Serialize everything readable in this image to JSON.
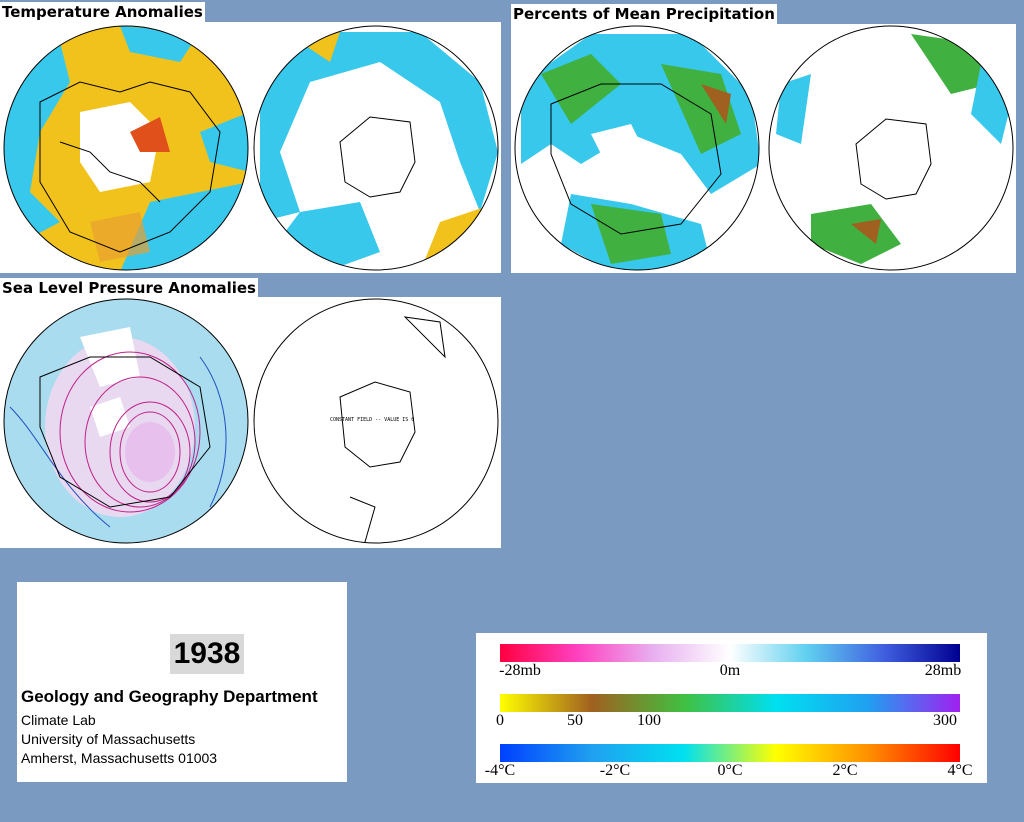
{
  "titles": {
    "temperature": "Temperature Anomalies",
    "precipitation": "Percents of Mean Precipitation",
    "pressure": "Sea Level Pressure Anomalies"
  },
  "map_note": "CONSTANT FIELD -- VALUE IS 0",
  "info": {
    "year": "1938",
    "department": "Geology and Geography Department",
    "lines": [
      "Climate Lab",
      "University of Massachusetts",
      "Amherst, Massachusetts 01003"
    ]
  },
  "legends": {
    "pressure": {
      "colors": [
        "#ff0040",
        "#ff40c0",
        "#e8b0f0",
        "#ffffff",
        "#60d0f0",
        "#4060e0",
        "#000090"
      ],
      "ticks": [
        "-28mb",
        "0m",
        "28mb"
      ]
    },
    "precipitation": {
      "colors": [
        "#ffff00",
        "#a06020",
        "#40c040",
        "#00e0f0",
        "#20a0f0",
        "#a020f0"
      ],
      "ticks": [
        "0",
        "50",
        "100",
        "300"
      ]
    },
    "temperature": {
      "colors": [
        "#0040ff",
        "#20a0f0",
        "#00e0f0",
        "#ffff00",
        "#ff9000",
        "#ff0000"
      ],
      "ticks": [
        "-4°C",
        "-2°C",
        "0°C",
        "2°C",
        "4°C"
      ]
    }
  }
}
